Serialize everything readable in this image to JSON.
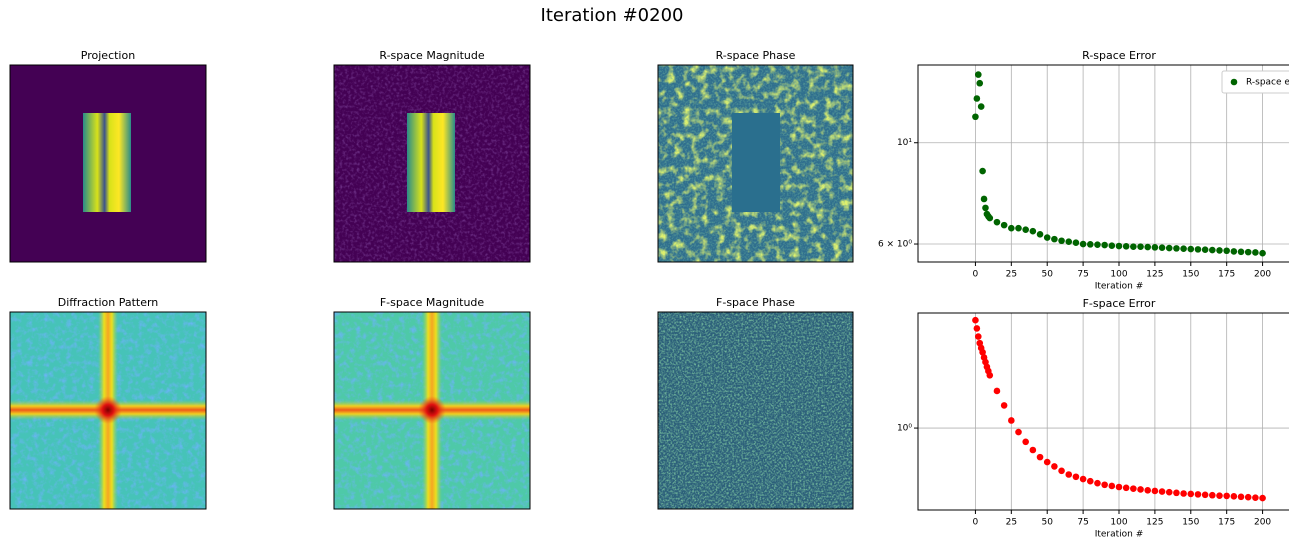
{
  "title": "Iteration #0200",
  "chart_data": [
    {
      "type": "image",
      "title": "Projection"
    },
    {
      "type": "image",
      "title": "R-space Magnitude"
    },
    {
      "type": "image",
      "title": "R-space Phase"
    },
    {
      "type": "scatter",
      "title": "R-space Error",
      "xlabel": "Iteration #",
      "x": [
        0,
        1,
        2,
        3,
        4,
        5,
        6,
        7,
        8,
        9,
        10,
        15,
        20,
        25,
        30,
        35,
        40,
        45,
        50,
        55,
        60,
        65,
        70,
        75,
        80,
        85,
        90,
        95,
        100,
        105,
        110,
        115,
        120,
        125,
        130,
        135,
        140,
        145,
        150,
        155,
        160,
        165,
        170,
        175,
        180,
        185,
        190,
        195,
        200
      ],
      "series": [
        {
          "name": "R-space error",
          "color": "#006400",
          "values": [
            11.4,
            12.5,
            14.1,
            13.5,
            12.0,
            8.67,
            7.53,
            7.2,
            6.98,
            6.9,
            6.84,
            6.7,
            6.6,
            6.5,
            6.5,
            6.45,
            6.4,
            6.3,
            6.2,
            6.15,
            6.1,
            6.07,
            6.04,
            6.0,
            5.99,
            5.98,
            5.97,
            5.95,
            5.94,
            5.93,
            5.92,
            5.92,
            5.91,
            5.9,
            5.89,
            5.88,
            5.87,
            5.86,
            5.85,
            5.84,
            5.83,
            5.82,
            5.81,
            5.8,
            5.78,
            5.77,
            5.76,
            5.75,
            5.73
          ]
        }
      ],
      "xlim": [
        -40,
        240
      ],
      "xticks": [
        0,
        25,
        50,
        75,
        100,
        125,
        150,
        175,
        200
      ],
      "ylim": [
        5.48,
        14.8
      ],
      "yticks": [
        {
          "value": 6,
          "label": "6 × 10⁰"
        },
        {
          "value": 10,
          "label": "10¹"
        }
      ],
      "log_y": true,
      "grid": true,
      "legend": "upper right"
    },
    {
      "type": "image",
      "title": "Diffraction Pattern"
    },
    {
      "type": "image",
      "title": "F-space Magnitude"
    },
    {
      "type": "image",
      "title": "F-space Phase"
    },
    {
      "type": "scatter",
      "title": "F-space Error",
      "xlabel": "Iteration #",
      "x": [
        0,
        1,
        2,
        3,
        4,
        5,
        6,
        7,
        8,
        9,
        10,
        15,
        20,
        25,
        30,
        35,
        40,
        45,
        50,
        55,
        60,
        65,
        70,
        75,
        80,
        85,
        90,
        95,
        100,
        105,
        110,
        115,
        120,
        125,
        130,
        135,
        140,
        145,
        150,
        155,
        160,
        165,
        170,
        175,
        180,
        185,
        190,
        195,
        200
      ],
      "series": [
        {
          "color": "#ff0000",
          "values": [
            2.29,
            2.15,
            2.02,
            1.92,
            1.85,
            1.79,
            1.72,
            1.66,
            1.6,
            1.55,
            1.5,
            1.33,
            1.19,
            1.06,
            0.97,
            0.9,
            0.845,
            0.8,
            0.77,
            0.745,
            0.72,
            0.7,
            0.688,
            0.676,
            0.665,
            0.655,
            0.647,
            0.641,
            0.636,
            0.632,
            0.628,
            0.624,
            0.62,
            0.617,
            0.614,
            0.611,
            0.608,
            0.605,
            0.603,
            0.601,
            0.599,
            0.597,
            0.595,
            0.594,
            0.592,
            0.59,
            0.588,
            0.586,
            0.584
          ]
        }
      ],
      "xlim": [
        -40,
        240
      ],
      "xticks": [
        0,
        25,
        50,
        75,
        100,
        125,
        150,
        175,
        200
      ],
      "ylim": [
        0.533,
        2.42
      ],
      "yticks": [
        {
          "value": 1,
          "label": "10⁰"
        }
      ],
      "log_y": true,
      "grid": true
    }
  ]
}
